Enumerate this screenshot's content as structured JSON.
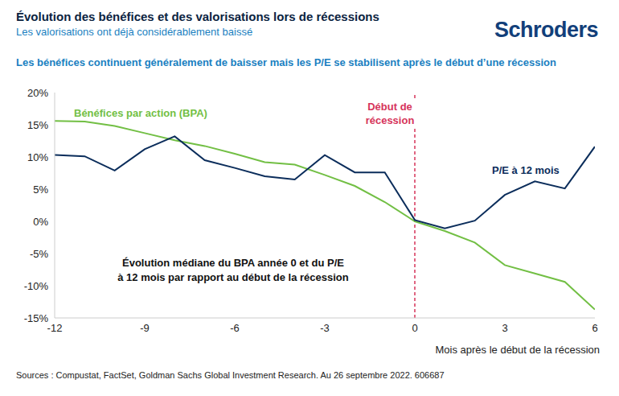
{
  "chart_data": {
    "type": "line",
    "title": "Évolution des bénéfices et des valorisations lors de récessions",
    "subtitle": "Les valorisations ont déjà considérablement baissé",
    "headline": "Les bénéfices continuent généralement de baisser mais les P/E se stabilisent après le début d’une récession",
    "brand": "Schroders",
    "source": "Sources : Compustat, FactSet, Goldman Sachs Global Investment Research. Au 26 septembre 2022. 606687",
    "annotation": [
      "Évolution médiane du BPA année 0 et du P/E",
      "à 12 mois par rapport au début de la récession"
    ],
    "x_label": "Mois après le début de la récession",
    "event": {
      "x": 0,
      "label": [
        "Début de",
        "récession"
      ],
      "color": "#d6345a",
      "line_style": "dashed"
    },
    "x": [
      -12,
      -11,
      -10,
      -9,
      -8,
      -7,
      -6,
      -5,
      -4,
      -3,
      -2,
      -1,
      0,
      1,
      2,
      3,
      4,
      5,
      6
    ],
    "series": [
      {
        "name": "Bénéfices par action (BPA)",
        "color": "#72bf44",
        "values": [
          15.6,
          15.5,
          14.8,
          13.7,
          12.6,
          11.7,
          10.5,
          9.2,
          8.8,
          7.2,
          5.5,
          3.0,
          0,
          -1.5,
          -3.3,
          -6.8,
          -8.1,
          -9.4,
          -13.7
        ]
      },
      {
        "name": "P/E à 12 mois",
        "color": "#0b2d5b",
        "values": [
          10.3,
          10.1,
          7.9,
          11.2,
          13.2,
          9.5,
          8.3,
          7.0,
          6.5,
          10.3,
          7.6,
          7.6,
          0.2,
          -1.1,
          0.1,
          4.1,
          6.2,
          5.1,
          11.6
        ]
      }
    ],
    "xlim": [
      -12,
      6
    ],
    "xticks": [
      -12,
      -9,
      -6,
      -3,
      0,
      3,
      6
    ],
    "ylim": [
      -15,
      20
    ],
    "yticks": [
      {
        "value": -15,
        "label": "-15%"
      },
      {
        "value": -10,
        "label": "-10%"
      },
      {
        "value": -5,
        "label": "-5%"
      },
      {
        "value": 0,
        "label": "0%"
      },
      {
        "value": 5,
        "label": "5%"
      },
      {
        "value": 10,
        "label": "10%"
      },
      {
        "value": 15,
        "label": "15%"
      },
      {
        "value": 20,
        "label": "20%"
      }
    ],
    "grid": false
  }
}
